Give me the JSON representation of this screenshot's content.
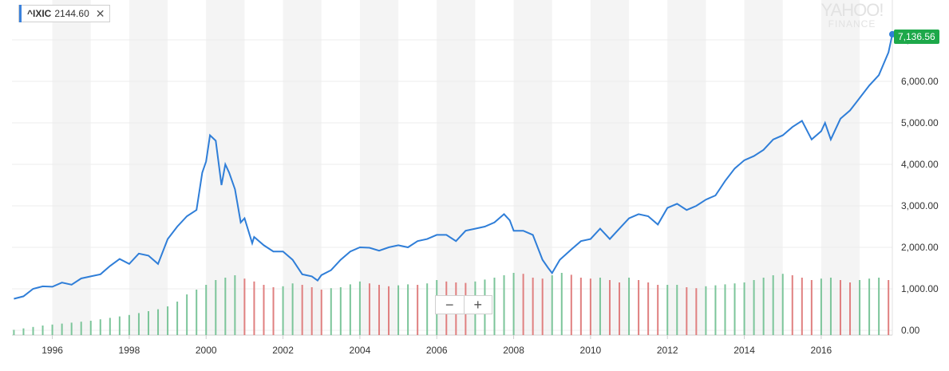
{
  "legend": {
    "symbol": "^IXIC",
    "value": "2144.60",
    "close_glyph": "✕",
    "color": "#3b82dc"
  },
  "watermark": {
    "line1": "YAHOO!",
    "line2": "FINANCE"
  },
  "zoom": {
    "minus": "−",
    "plus": "+"
  },
  "last_value_label": "7,136.56",
  "colors": {
    "line": "#2f7ed8",
    "up": "#7cc59a",
    "down": "#e08080",
    "badge": "#1da84a",
    "band": "#f4f4f4"
  },
  "chart_data": {
    "type": "line",
    "title": "",
    "xlabel": "",
    "ylabel": "",
    "xlim": [
      1994.95,
      2017.85
    ],
    "ylim": [
      0,
      7600
    ],
    "y_ticks": [
      "0.00",
      "1,000.00",
      "2,000.00",
      "3,000.00",
      "4,000.00",
      "5,000.00",
      "6,000.00",
      "7,000.00"
    ],
    "x_ticks": [
      "1996",
      "1998",
      "2000",
      "2002",
      "2004",
      "2006",
      "2008",
      "2010",
      "2012",
      "2014",
      "2016"
    ],
    "grid": true,
    "series": [
      {
        "name": "^IXIC",
        "x": [
          1995.0,
          1995.25,
          1995.5,
          1995.75,
          1996.0,
          1996.25,
          1996.5,
          1996.75,
          1997.0,
          1997.25,
          1997.5,
          1997.75,
          1998.0,
          1998.25,
          1998.5,
          1998.75,
          1999.0,
          1999.25,
          1999.5,
          1999.75,
          1999.9,
          2000.0,
          2000.1,
          2000.25,
          2000.4,
          2000.5,
          2000.6,
          2000.75,
          2000.9,
          2001.0,
          2001.2,
          2001.25,
          2001.5,
          2001.75,
          2002.0,
          2002.25,
          2002.5,
          2002.75,
          2002.9,
          2003.0,
          2003.25,
          2003.5,
          2003.75,
          2004.0,
          2004.25,
          2004.5,
          2004.75,
          2005.0,
          2005.25,
          2005.5,
          2005.75,
          2006.0,
          2006.25,
          2006.5,
          2006.75,
          2007.0,
          2007.25,
          2007.5,
          2007.75,
          2007.9,
          2008.0,
          2008.25,
          2008.5,
          2008.75,
          2008.9,
          2009.0,
          2009.2,
          2009.5,
          2009.75,
          2010.0,
          2010.25,
          2010.5,
          2010.75,
          2011.0,
          2011.25,
          2011.5,
          2011.75,
          2012.0,
          2012.25,
          2012.5,
          2012.75,
          2013.0,
          2013.25,
          2013.5,
          2013.75,
          2014.0,
          2014.25,
          2014.5,
          2014.75,
          2015.0,
          2015.25,
          2015.5,
          2015.75,
          2016.0,
          2016.1,
          2016.25,
          2016.5,
          2016.75,
          2017.0,
          2017.25,
          2017.5,
          2017.75,
          2017.85
        ],
        "values": [
          760,
          820,
          1000,
          1060,
          1050,
          1150,
          1100,
          1250,
          1300,
          1350,
          1550,
          1720,
          1600,
          1850,
          1800,
          1600,
          2200,
          2500,
          2750,
          2900,
          3800,
          4070,
          4700,
          4570,
          3500,
          4000,
          3800,
          3400,
          2600,
          2700,
          2100,
          2250,
          2050,
          1900,
          1900,
          1700,
          1350,
          1300,
          1200,
          1330,
          1450,
          1700,
          1900,
          2000,
          1990,
          1920,
          2000,
          2050,
          2000,
          2150,
          2200,
          2300,
          2300,
          2150,
          2400,
          2450,
          2500,
          2600,
          2800,
          2650,
          2400,
          2400,
          2300,
          1700,
          1500,
          1380,
          1700,
          1950,
          2150,
          2200,
          2450,
          2200,
          2450,
          2700,
          2800,
          2750,
          2550,
          2950,
          3050,
          2900,
          3000,
          3150,
          3250,
          3600,
          3900,
          4100,
          4200,
          4350,
          4600,
          4700,
          4900,
          5050,
          4600,
          4800,
          5000,
          4600,
          5100,
          5300,
          5600,
          5900,
          6150,
          6700,
          7136.56
        ]
      }
    ],
    "volume_series": [
      {
        "name": "Volume",
        "x": [
          1995.0,
          1995.25,
          1995.5,
          1995.75,
          1996.0,
          1996.25,
          1996.5,
          1996.75,
          1997.0,
          1997.25,
          1997.5,
          1997.75,
          1998.0,
          1998.25,
          1998.5,
          1998.75,
          1999.0,
          1999.25,
          1999.5,
          1999.75,
          2000.0,
          2000.25,
          2000.5,
          2000.75,
          2001.0,
          2001.25,
          2001.5,
          2001.75,
          2002.0,
          2002.25,
          2002.5,
          2002.75,
          2003.0,
          2003.25,
          2003.5,
          2003.75,
          2004.0,
          2004.25,
          2004.5,
          2004.75,
          2005.0,
          2005.25,
          2005.5,
          2005.75,
          2006.0,
          2006.25,
          2006.5,
          2006.75,
          2007.0,
          2007.25,
          2007.5,
          2007.75,
          2008.0,
          2008.25,
          2008.5,
          2008.75,
          2009.0,
          2009.25,
          2009.5,
          2009.75,
          2010.0,
          2010.25,
          2010.5,
          2010.75,
          2011.0,
          2011.25,
          2011.5,
          2011.75,
          2012.0,
          2012.25,
          2012.5,
          2012.75,
          2013.0,
          2013.25,
          2013.5,
          2013.75,
          2014.0,
          2014.25,
          2014.5,
          2014.75,
          2015.0,
          2015.25,
          2015.5,
          2015.75,
          2016.0,
          2016.25,
          2016.5,
          2016.75,
          2017.0,
          2017.25,
          2017.5,
          2017.75
        ],
        "values": [
          110,
          140,
          170,
          200,
          220,
          240,
          260,
          280,
          300,
          330,
          360,
          390,
          420,
          460,
          500,
          540,
          600,
          700,
          850,
          950,
          1050,
          1150,
          1200,
          1250,
          1180,
          1120,
          1050,
          1000,
          1020,
          1080,
          1050,
          1000,
          950,
          980,
          1000,
          1060,
          1120,
          1080,
          1050,
          1020,
          1040,
          1060,
          1050,
          1080,
          1150,
          1120,
          1100,
          1090,
          1120,
          1160,
          1200,
          1250,
          1300,
          1280,
          1200,
          1180,
          1250,
          1300,
          1260,
          1200,
          1180,
          1200,
          1150,
          1100,
          1200,
          1150,
          1100,
          1050,
          1050,
          1050,
          1000,
          980,
          1020,
          1040,
          1060,
          1080,
          1100,
          1150,
          1200,
          1250,
          1280,
          1250,
          1200,
          1150,
          1180,
          1200,
          1150,
          1100,
          1150,
          1180,
          1200,
          1150
        ]
      }
    ]
  }
}
